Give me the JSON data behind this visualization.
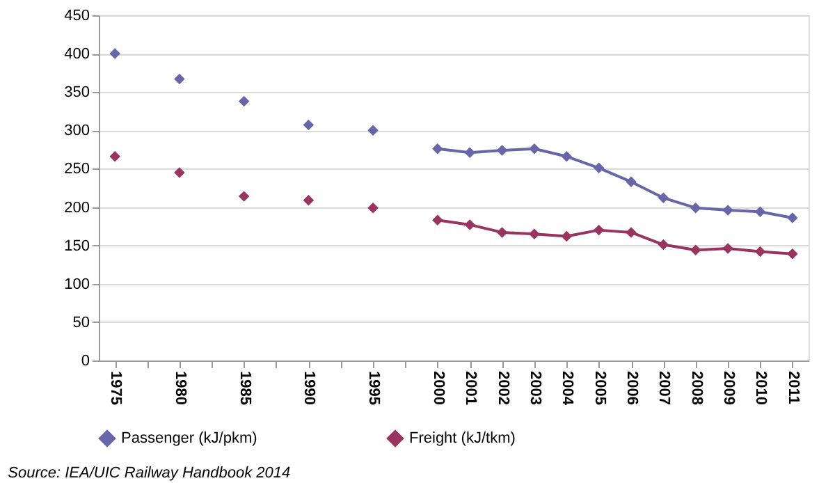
{
  "chart_data": {
    "type": "line",
    "categories": [
      "1975",
      null,
      "1980",
      null,
      "1985",
      null,
      "1990",
      null,
      "1995",
      null,
      "2000",
      "2001",
      "2002",
      "2003",
      "2004",
      "2005",
      "2006",
      "2007",
      "2008",
      "2009",
      "2010",
      "2011"
    ],
    "series": [
      {
        "name": "Passenger (kJ/pkm)",
        "color": "#6666a8",
        "values": [
          400,
          null,
          367,
          null,
          338,
          null,
          307,
          null,
          300,
          null,
          276,
          271,
          274,
          276,
          266,
          251,
          233,
          212,
          199,
          196,
          194,
          186
        ]
      },
      {
        "name": "Freight (kJ/tkm)",
        "color": "#99335f",
        "values": [
          266,
          null,
          245,
          null,
          214,
          null,
          209,
          null,
          199,
          null,
          183,
          177,
          167,
          165,
          162,
          170,
          167,
          151,
          144,
          146,
          142,
          139
        ]
      }
    ],
    "ylim": [
      0,
      450
    ],
    "yticks": [
      0,
      50,
      100,
      150,
      200,
      250,
      300,
      350,
      400,
      450
    ],
    "grid": "y",
    "legend": "bottom",
    "marker": "diamond",
    "line_style": "solid",
    "annotations": [
      "Source: IEA/UIC Railway Handbook 2014"
    ]
  }
}
